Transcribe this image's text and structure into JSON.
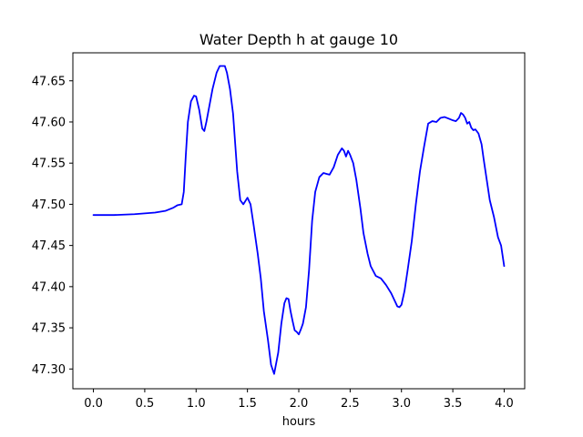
{
  "chart_data": {
    "type": "line",
    "title": "Water Depth h at gauge 10",
    "xlabel": "hours",
    "ylabel": "",
    "xlim": [
      -0.2,
      4.2
    ],
    "ylim": [
      47.276,
      47.684
    ],
    "xticks": [
      0.0,
      0.5,
      1.0,
      1.5,
      2.0,
      2.5,
      3.0,
      3.5,
      4.0
    ],
    "xtick_labels": [
      "0.0",
      "0.5",
      "1.0",
      "1.5",
      "2.0",
      "2.5",
      "3.0",
      "3.5",
      "4.0"
    ],
    "yticks": [
      47.3,
      47.35,
      47.4,
      47.45,
      47.5,
      47.55,
      47.6,
      47.65
    ],
    "ytick_labels": [
      "47.30",
      "47.35",
      "47.40",
      "47.45",
      "47.50",
      "47.55",
      "47.60",
      "47.65"
    ],
    "grid": false,
    "series": [
      {
        "color": "#0000ff",
        "x": [
          0.0,
          0.2,
          0.4,
          0.6,
          0.7,
          0.78,
          0.82,
          0.86,
          0.88,
          0.9,
          0.92,
          0.95,
          0.98,
          1.0,
          1.03,
          1.06,
          1.08,
          1.1,
          1.13,
          1.16,
          1.2,
          1.23,
          1.26,
          1.28,
          1.3,
          1.33,
          1.36,
          1.4,
          1.43,
          1.46,
          1.5,
          1.53,
          1.56,
          1.6,
          1.63,
          1.66,
          1.7,
          1.73,
          1.76,
          1.8,
          1.83,
          1.86,
          1.88,
          1.9,
          1.92,
          1.94,
          1.96,
          1.98,
          2.0,
          2.02,
          2.04,
          2.07,
          2.1,
          2.13,
          2.16,
          2.2,
          2.24,
          2.27,
          2.3,
          2.34,
          2.38,
          2.42,
          2.44,
          2.46,
          2.48,
          2.5,
          2.53,
          2.56,
          2.6,
          2.63,
          2.67,
          2.7,
          2.75,
          2.8,
          2.85,
          2.9,
          2.93,
          2.96,
          2.98,
          3.0,
          3.03,
          3.06,
          3.1,
          3.14,
          3.18,
          3.22,
          3.26,
          3.3,
          3.34,
          3.38,
          3.42,
          3.46,
          3.5,
          3.53,
          3.56,
          3.58,
          3.6,
          3.62,
          3.64,
          3.66,
          3.68,
          3.7,
          3.72,
          3.75,
          3.78,
          3.8,
          3.83,
          3.86,
          3.9,
          3.94,
          3.97,
          4.0
        ],
        "y": [
          47.487,
          47.487,
          47.488,
          47.49,
          47.492,
          47.496,
          47.499,
          47.5,
          47.515,
          47.56,
          47.6,
          47.625,
          47.632,
          47.631,
          47.615,
          47.592,
          47.589,
          47.6,
          47.62,
          47.64,
          47.66,
          47.668,
          47.668,
          47.668,
          47.66,
          47.64,
          47.61,
          47.54,
          47.505,
          47.5,
          47.508,
          47.5,
          47.475,
          47.44,
          47.41,
          47.37,
          47.335,
          47.305,
          47.294,
          47.32,
          47.355,
          47.38,
          47.386,
          47.385,
          47.37,
          47.358,
          47.347,
          47.345,
          47.342,
          47.348,
          47.355,
          47.375,
          47.42,
          47.48,
          47.515,
          47.533,
          47.538,
          47.537,
          47.536,
          47.545,
          47.56,
          47.568,
          47.565,
          47.558,
          47.565,
          47.56,
          47.55,
          47.53,
          47.495,
          47.465,
          47.44,
          47.425,
          47.413,
          47.41,
          47.402,
          47.392,
          47.384,
          47.376,
          47.375,
          47.378,
          47.395,
          47.42,
          47.455,
          47.5,
          47.54,
          47.57,
          47.598,
          47.601,
          47.6,
          47.605,
          47.606,
          47.604,
          47.602,
          47.601,
          47.605,
          47.611,
          47.609,
          47.605,
          47.598,
          47.6,
          47.593,
          47.59,
          47.591,
          47.586,
          47.573,
          47.555,
          47.53,
          47.505,
          47.485,
          47.46,
          47.45,
          47.425
        ]
      }
    ]
  }
}
